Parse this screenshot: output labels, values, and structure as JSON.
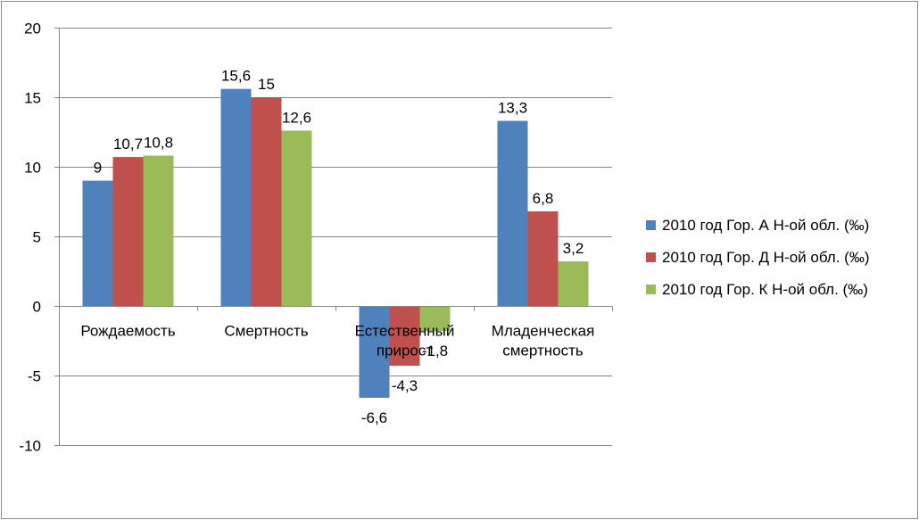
{
  "chart_data": {
    "type": "bar",
    "categories": [
      "Рождаемость",
      "Смертность",
      "Естественный прирост",
      "Младенческая смертность"
    ],
    "category_label_lines": [
      [
        "Рождаемость"
      ],
      [
        "Смертность"
      ],
      [
        "Естественный",
        "прирост"
      ],
      [
        "Младенческая",
        "смертность"
      ]
    ],
    "series": [
      {
        "name": "2010 год Гор. А Н-ой обл. (‰)",
        "color": "#4f81bd",
        "values": [
          9,
          15.6,
          -6.6,
          13.3
        ],
        "labels": [
          "9",
          "15,6",
          "-6,6",
          "13,3"
        ]
      },
      {
        "name": "2010 год Гор. Д Н-ой обл. (‰)",
        "color": "#c0504d",
        "values": [
          10.7,
          15,
          -4.3,
          6.8
        ],
        "labels": [
          "10,7",
          "15",
          "-4,3",
          "6,8"
        ]
      },
      {
        "name": "2010 год Гор. К Н-ой обл. (‰)",
        "color": "#9bbb59",
        "values": [
          10.8,
          12.6,
          -1.8,
          3.2
        ],
        "labels": [
          "10,8",
          "12,6",
          "-1,8",
          "3,2"
        ]
      }
    ],
    "ylim": [
      -10,
      20
    ],
    "yticks": [
      -10,
      -5,
      0,
      5,
      10,
      15,
      20
    ],
    "title": "",
    "xlabel": "",
    "ylabel": "",
    "grid": true,
    "legend_position": "right"
  }
}
